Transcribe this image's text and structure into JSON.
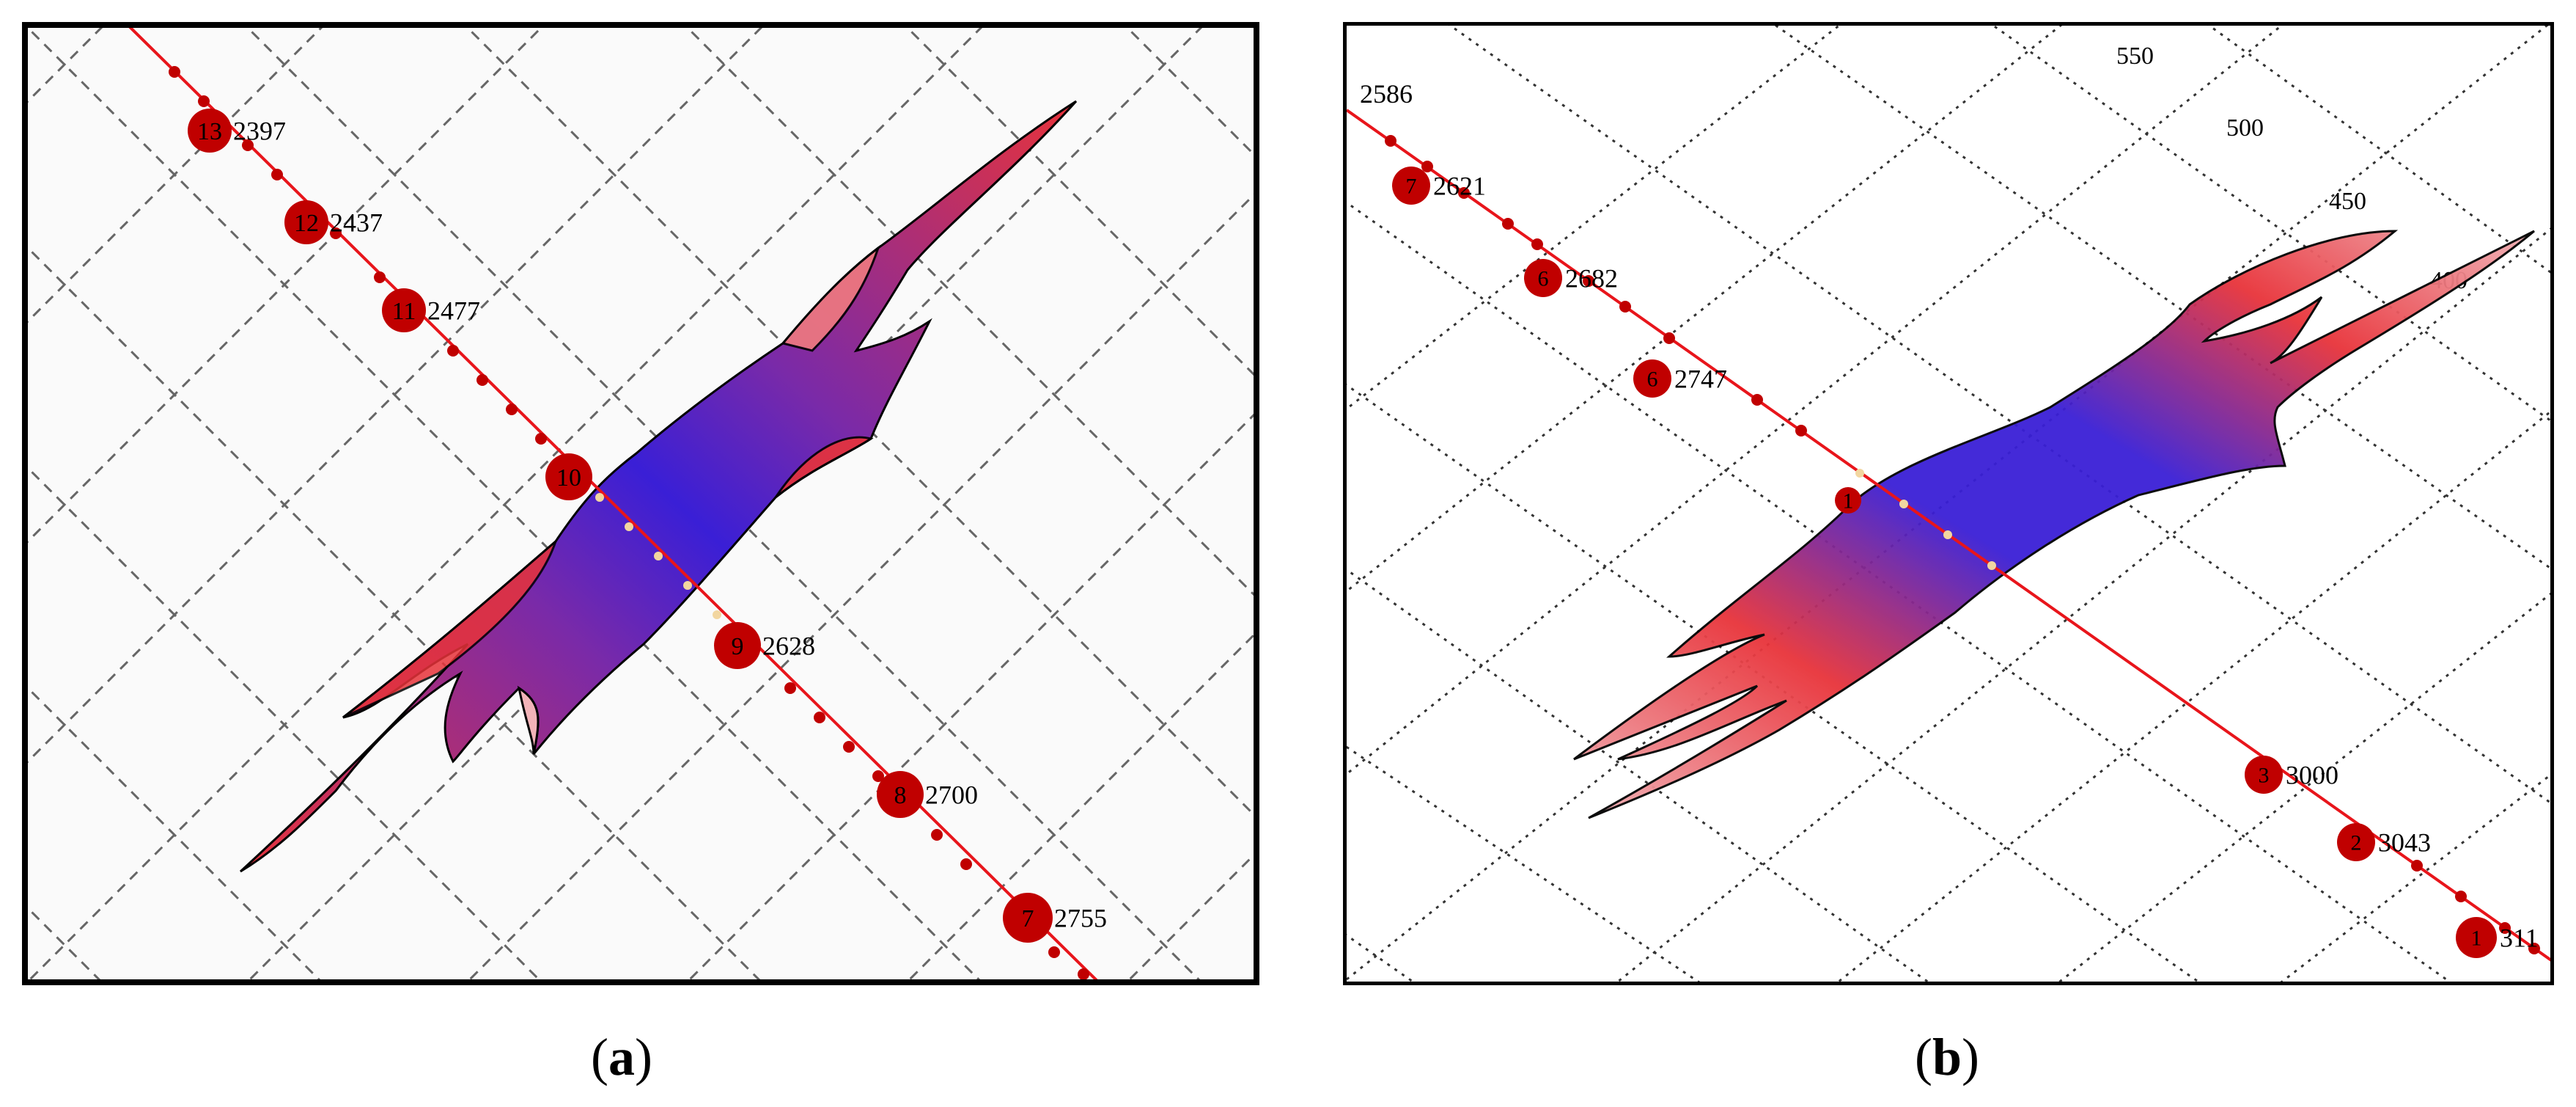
{
  "colors": {
    "frame": "#000000",
    "line": "#e8151b",
    "marker": "#c00000",
    "grid": "#555555",
    "contour_low": "#3a1fd6",
    "contour_mid": "#7a2aa8",
    "contour_high": "#e8333a",
    "contour_edge": "#f2b3b8"
  },
  "panel_a": {
    "caption_letter": "a",
    "markers": [
      {
        "id": "13",
        "value": "2397"
      },
      {
        "id": "12",
        "value": "2437"
      },
      {
        "id": "11",
        "value": "2477"
      },
      {
        "id": "10",
        "value": ""
      },
      {
        "id": "9",
        "value": "2628"
      },
      {
        "id": "8",
        "value": "2700"
      },
      {
        "id": "7",
        "value": "2755"
      }
    ]
  },
  "panel_b": {
    "caption_letter": "b",
    "top_label": "2586",
    "markers": [
      {
        "id": "7",
        "value": "2621"
      },
      {
        "id": "6",
        "value": "2682"
      },
      {
        "id": "6",
        "value": "2747"
      },
      {
        "id": "1",
        "value": ""
      },
      {
        "id": "3",
        "value": "3000"
      },
      {
        "id": "2",
        "value": "3043"
      },
      {
        "id": "1",
        "value": "311"
      }
    ],
    "grid_labels": [
      "550",
      "500",
      "450",
      "400"
    ]
  }
}
